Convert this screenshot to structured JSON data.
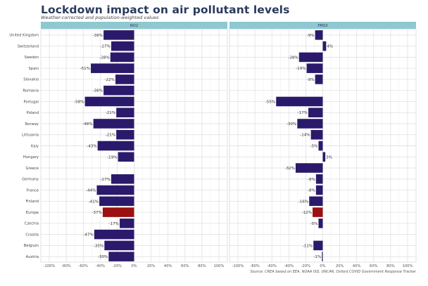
{
  "chart_data": {
    "type": "bar",
    "orientation": "horizontal",
    "title": "Lockdown impact on air pollutant levels",
    "subtitle": "Weather-corrected and population-weighted values",
    "source": "Source: CREA based on EEA, NOAA ISD, UNCAR, Oxford COVID Government Response Tracker",
    "categories": [
      "United Kingdom",
      "Switzerland",
      "Sweden",
      "Spain",
      "Slovakia",
      "Romania",
      "Portugal",
      "Poland",
      "Norway",
      "Lithuania",
      "Italy",
      "Hungary",
      "Greece",
      "Germany",
      "France",
      "Finland",
      "Europe",
      "Czechia",
      "Croatia",
      "Belgium",
      "Austria"
    ],
    "highlight_category": "Europe",
    "xlim": [
      -100,
      100
    ],
    "xticks": [
      -100,
      -80,
      -60,
      -40,
      -20,
      0,
      20,
      40,
      60,
      80,
      100
    ],
    "xtick_labels": [
      "-100%",
      "-80%",
      "-60%",
      "-40%",
      "-20%",
      "0%",
      "20%",
      "40%",
      "60%",
      "80%",
      "100%"
    ],
    "grid": true,
    "colors": {
      "bar": "#2b1a6b",
      "highlight": "#9b1111",
      "strip": "#8ec8d0",
      "grid": "#dddddd",
      "title": "#2a3a5e"
    },
    "panels": [
      {
        "name": "NO2",
        "values": [
          -36,
          -27,
          -28,
          -51,
          -22,
          -36,
          -58,
          -21,
          -48,
          -21,
          -43,
          -19,
          null,
          -27,
          -44,
          -41,
          -37,
          -17,
          -47,
          -35,
          -30
        ]
      },
      {
        "name": "PM10",
        "values": [
          -9,
          4,
          -28,
          -19,
          -9,
          null,
          -55,
          -17,
          -30,
          -14,
          -5,
          3,
          -32,
          -8,
          -8,
          -16,
          -12,
          -5,
          null,
          -11,
          -1
        ]
      }
    ]
  }
}
